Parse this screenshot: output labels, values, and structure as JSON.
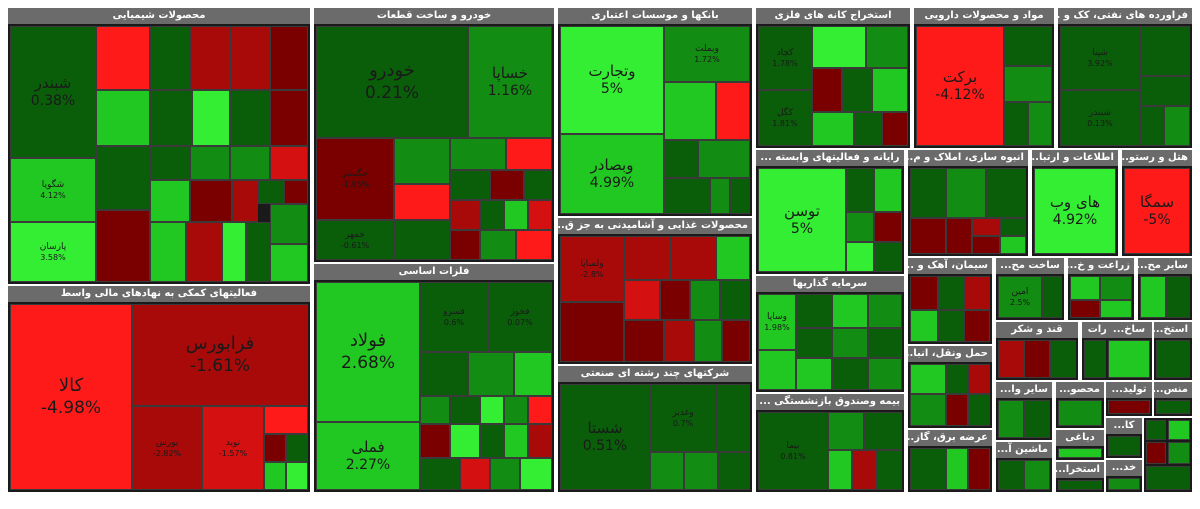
{
  "sectors": {
    "chemical": "محصولات شیمیایی",
    "financial": "فعالیتهای کمکی به نهادهای مالی واسط",
    "auto": "خودرو و ساخت قطعات",
    "metals": "فلزات اساسی",
    "banks": "بانکها و موسسات اعتباری",
    "food": "محصولات غذایی و آشامیدنی به جز ق...",
    "multi": "شرکتهای چند رشته ای صنعتی",
    "mining": "استخراج کانه های فلزی",
    "pharma": "مواد و محصولات دارویی",
    "oil": "فراورده های نفتی، کک و ...",
    "computer": "رایانه و فعالیتهای وابسته ...",
    "realestate": "انبوه سازی، املاک و م...",
    "telecom": "اطلاعات و ارتبا...",
    "hotel": "هتل و رستو...",
    "investment": "سرمایه گذاریها",
    "insurance": "بیمه وصندوق بازنشستگی ...",
    "cement": "سیمان، آهک و ...",
    "construction": "ساخت مح...",
    "agri": "زراعت و خ...",
    "othermining": "سایر مح...",
    "transport": "حمل ونقل، انبا...",
    "sugar": "قند و شکر",
    "comm": "مخابرات",
    "build": "ساخ...",
    "extract": "استخ...",
    "electric": "عرضه برق، گاز...",
    "othernonmetal": "سایر وا...",
    "rubber": "محصو...",
    "produce": "تولید...",
    "textile": "منس...",
    "machine": "ماشین آ...",
    "publish": "دباغی",
    "ka": "کا...",
    "rent": "استخرا...",
    "kh": "خد..."
  },
  "tickers": {
    "shabandar": {
      "name": "شبندر",
      "pct": "0.38%"
    },
    "shegoya": {
      "name": "شگویا",
      "pct": "4.12%"
    },
    "parsan": {
      "name": "پارسان",
      "pct": "3.58%"
    },
    "kala": {
      "name": "کالا",
      "pct": "-4.98%"
    },
    "farabourse": {
      "name": "فرابورس",
      "pct": "-1.61%"
    },
    "bourse": {
      "name": "بورس",
      "pct": "-2.82%"
    },
    "nobid": {
      "name": "نوید",
      "pct": "-1.57%"
    },
    "khodro": {
      "name": "خودرو",
      "pct": "0.21%"
    },
    "khasapa": {
      "name": "خساپا",
      "pct": "1.16%"
    },
    "foulad": {
      "name": "فولاد",
      "pct": "2.68%"
    },
    "fameli": {
      "name": "فملی",
      "pct": "2.27%"
    },
    "vatejarat": {
      "name": "وتجارت",
      "pct": "5%"
    },
    "vebsader": {
      "name": "وبصادر",
      "pct": "4.99%"
    },
    "vbmellat": {
      "name": "وبملت",
      "pct": "1.72%"
    },
    "shasta": {
      "name": "شستا",
      "pct": "0.51%"
    },
    "vghadir": {
      "name": "وغدیر",
      "pct": "0.7%"
    },
    "kgol": {
      "name": "کگل",
      "pct": "1.81%"
    },
    "kchad": {
      "name": "کچاد",
      "pct": "1.78%"
    },
    "barakat": {
      "name": "برکت",
      "pct": "-4.12%"
    },
    "shapna": {
      "name": "شپنا",
      "pct": "3.92%"
    },
    "shebandar2": {
      "name": "شبندر",
      "pct": "0.13%"
    },
    "toosan": {
      "name": "توسن",
      "pct": "5%"
    },
    "haveb": {
      "name": "های وب",
      "pct": "4.92%"
    },
    "semga": {
      "name": "سمگا",
      "pct": "-5%"
    },
    "bima": {
      "name": "بیما",
      "pct": "0.81%"
    },
    "vsadid": {
      "name": "وساپا",
      "pct": "1.98%"
    },
    "kheltosa": {
      "name": "خگستر",
      "pct": "-1.95%"
    },
    "khmoher": {
      "name": "خمهر",
      "pct": "-0.61%"
    },
    "fesrouz": {
      "name": "فسرو",
      "pct": "0.6%"
    },
    "fmoli": {
      "name": "فخوز",
      "pct": "0.07%"
    },
    "vgharb": {
      "name": "ولساپا",
      "pct": "-2.8%"
    },
    "amin": {
      "name": "امین",
      "pct": "2.5%"
    }
  }
}
